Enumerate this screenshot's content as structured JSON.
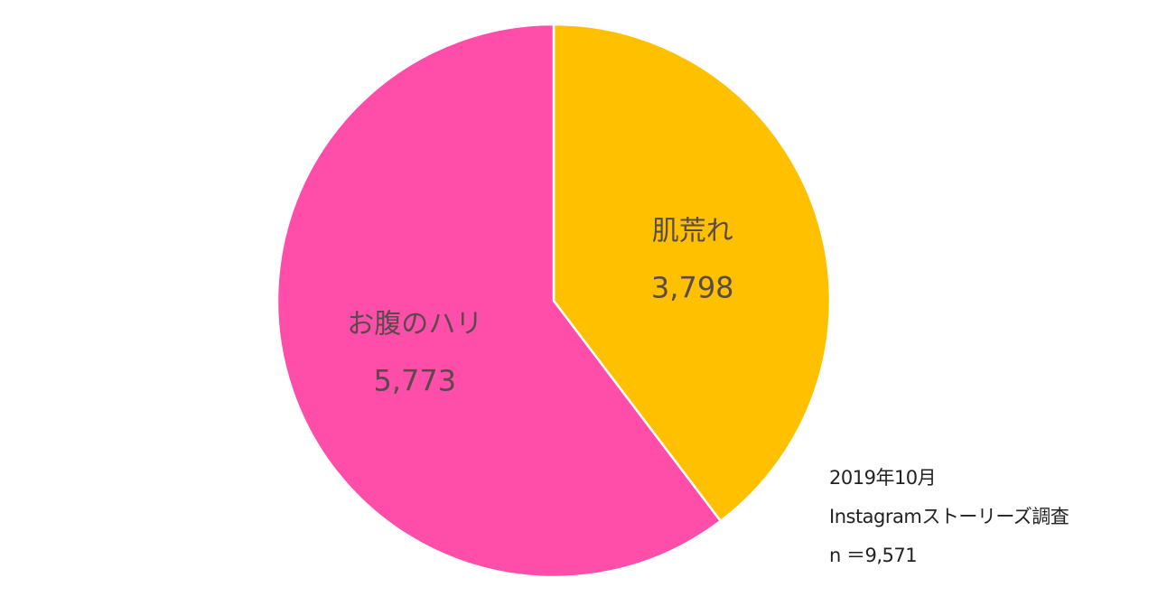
{
  "chart_data": {
    "type": "pie",
    "title": "",
    "categories": [
      "肌荒れ",
      "お腹のハリ"
    ],
    "values": [
      3798,
      5773
    ],
    "value_labels": [
      "3,798",
      "5,773"
    ],
    "colors": [
      "#FFC000",
      "#FF4DAA"
    ],
    "start_angle": "12 o'clock",
    "direction": "clockwise",
    "legend": "none",
    "labels_inside": true
  },
  "note": {
    "line1": "2019年10月",
    "line2": "Instagramストーリーズ調査",
    "line3": " n ＝9,571"
  }
}
